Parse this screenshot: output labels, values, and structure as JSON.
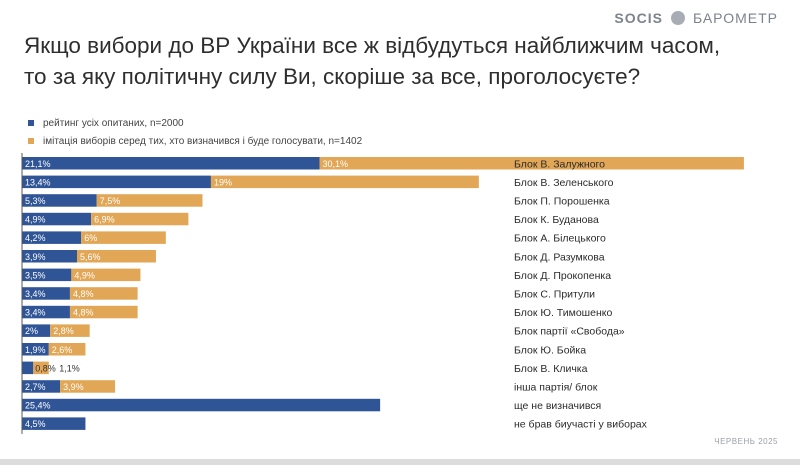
{
  "brand": {
    "logo": "SOCIS",
    "badge": "",
    "name": "БАРОМЕТР"
  },
  "title": "Якщо вибори до ВР України все ж відбудуться найближчим часом, то за яку політичну силу Ви, скоріше за все, проголосуєте?",
  "footer_date": "ЧЕРВЕНЬ 2025",
  "colors": {
    "rating": "#2f5597",
    "imitation": "#e2a756",
    "axis": "#555555"
  },
  "chart_data": {
    "type": "bar",
    "orientation": "horizontal",
    "categories": [
      "Блок В. Залужного",
      "Блок В. Зеленського",
      "Блок П. Порошенка",
      "Блок К. Буданова",
      "Блок А. Білецького",
      "Блок Д. Разумкова",
      "Блок Д. Прокопенка",
      "Блок С. Притули",
      "Блок Ю. Тимошенко",
      "Блок партії «Свобода»",
      "Блок Ю. Бойка",
      "Блок В. Кличка",
      "інша партія/ блок",
      "ще не визначився",
      "не брав биучасті у виборах"
    ],
    "series": [
      {
        "name": "рейтинг усіх опитаних, n=2000",
        "values": [
          21.1,
          13.4,
          5.3,
          4.9,
          4.2,
          3.9,
          3.5,
          3.4,
          3.4,
          2,
          1.9,
          0.8,
          2.7,
          25.4,
          4.5
        ],
        "labels": [
          "21,1%",
          "13,4%",
          "5,3%",
          "4,9%",
          "4,2%",
          "3,9%",
          "3,5%",
          "3,4%",
          "3,4%",
          "2%",
          "1,9%",
          "0,8%",
          "2,7%",
          "25,4%",
          "4,5%"
        ]
      },
      {
        "name": "імітація виборів серед тих, хто визначився і буде голосувати, n=1402",
        "values": [
          30.1,
          19,
          7.5,
          6.9,
          6,
          5.6,
          4.9,
          4.8,
          4.8,
          2.8,
          2.6,
          1.1,
          3.9,
          null,
          null
        ],
        "labels": [
          "30,1%",
          "19%",
          "7,5%",
          "6,9%",
          "6%",
          "5,6%",
          "4,9%",
          "4,8%",
          "4,8%",
          "2,8%",
          "2,6%",
          "1,1%",
          "3,9%",
          "",
          ""
        ]
      }
    ],
    "stacked": true
  }
}
